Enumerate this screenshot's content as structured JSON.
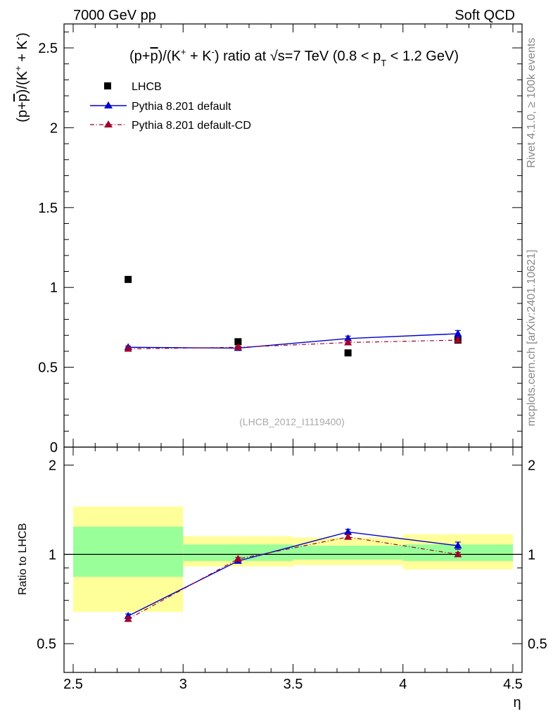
{
  "header": {
    "left": "7000 GeV pp",
    "right": "Soft QCD"
  },
  "side_labels": {
    "rivet": "Rivet 4.1.0, ≥ 100k events",
    "mcplots": "mcplots.cern.ch [arXiv:2401.10621]"
  },
  "analysis_tag": "(LHCB_2012_I1119400)",
  "colors": {
    "data": "#000000",
    "default": "#0000cc",
    "cd": "#a0002a",
    "band_inner": "#99ff99",
    "band_outer": "#ffff99"
  },
  "chart_data": [
    {
      "type": "scatter",
      "panel": "main",
      "title_parts": {
        "prefix": "(p+",
        "pbar": "p",
        "mid": ")/(K",
        "sup1": "+",
        "plus": " + K",
        "sup2": "-",
        "after": ") ratio at ",
        "sqrt": "√s",
        "energy": "=7 TeV (0.8 < p",
        "sub": "T",
        "tail": " < 1.2 GeV)"
      },
      "ylabel_parts": {
        "prefix": "(p+",
        "pbar": "p",
        "mid": ")/(K",
        "sup1": "+",
        "plus": " + K",
        "sup2": "-",
        "tail": ")"
      },
      "xlim": [
        2.5,
        4.5
      ],
      "ylim": [
        0,
        2.65
      ],
      "yticks": [
        {
          "value": 0,
          "label": "0"
        },
        {
          "value": 0.5,
          "label": "0.5"
        },
        {
          "value": 1,
          "label": "1"
        },
        {
          "value": 1.5,
          "label": "1.5"
        },
        {
          "value": 2,
          "label": "2"
        },
        {
          "value": 2.5,
          "label": "2.5"
        }
      ],
      "legend": {
        "placement": "top-left",
        "entries": [
          "LHCB",
          "Pythia 8.201 default",
          "Pythia 8.201 default-CD"
        ]
      },
      "series": [
        {
          "name": "LHCB",
          "style": "data",
          "x": [
            2.75,
            3.25,
            3.75,
            4.25
          ],
          "y": [
            1.05,
            0.66,
            0.59,
            0.67
          ]
        },
        {
          "name": "Pythia 8.201 default",
          "style": "default",
          "x": [
            2.75,
            3.25,
            3.75,
            4.25
          ],
          "y": [
            0.625,
            0.62,
            0.68,
            0.71
          ],
          "yerr": [
            0.008,
            0.008,
            0.015,
            0.02
          ]
        },
        {
          "name": "Pythia 8.201 default-CD",
          "style": "cd",
          "x": [
            2.75,
            3.25,
            3.75,
            4.25
          ],
          "y": [
            0.615,
            0.625,
            0.655,
            0.67
          ],
          "yerr": [
            0.008,
            0.008,
            0.012,
            0.012
          ]
        }
      ]
    },
    {
      "type": "line",
      "panel": "ratio",
      "ylabel": "Ratio to LHCB",
      "xlabel": "η",
      "xlim": [
        2.5,
        4.5
      ],
      "ylim": [
        0.4,
        2.3
      ],
      "log_y": true,
      "xticks": [
        {
          "value": 2.5,
          "label": "2.5"
        },
        {
          "value": 3,
          "label": "3"
        },
        {
          "value": 3.5,
          "label": "3.5"
        },
        {
          "value": 4,
          "label": "4"
        },
        {
          "value": 4.5,
          "label": "4.5"
        }
      ],
      "yticks": [
        {
          "value": 0.5,
          "label": "0.5"
        },
        {
          "value": 1,
          "label": "1"
        },
        {
          "value": 2,
          "label": "2"
        }
      ],
      "bands": [
        {
          "x0": 2.5,
          "x1": 3.0,
          "inner": [
            0.84,
            1.24
          ],
          "outer": [
            0.64,
            1.45
          ]
        },
        {
          "x0": 3.0,
          "x1": 3.5,
          "inner": [
            0.95,
            1.08
          ],
          "outer": [
            0.91,
            1.15
          ]
        },
        {
          "x0": 3.5,
          "x1": 4.0,
          "inner": [
            0.96,
            1.07
          ],
          "outer": [
            0.92,
            1.14
          ]
        },
        {
          "x0": 4.0,
          "x1": 4.5,
          "inner": [
            0.95,
            1.08
          ],
          "outer": [
            0.89,
            1.17
          ]
        }
      ],
      "series": [
        {
          "name": "Pythia 8.201 default",
          "style": "default",
          "x": [
            2.75,
            3.25,
            3.75,
            4.25
          ],
          "y": [
            0.62,
            0.95,
            1.19,
            1.07
          ],
          "yerr": [
            0.01,
            0.012,
            0.025,
            0.03
          ]
        },
        {
          "name": "Pythia 8.201 default-CD",
          "style": "cd",
          "x": [
            2.75,
            3.25,
            3.75,
            4.25
          ],
          "y": [
            0.605,
            0.965,
            1.145,
            1.0
          ],
          "yerr": [
            0.01,
            0.012,
            0.02,
            0.015
          ]
        }
      ]
    }
  ]
}
